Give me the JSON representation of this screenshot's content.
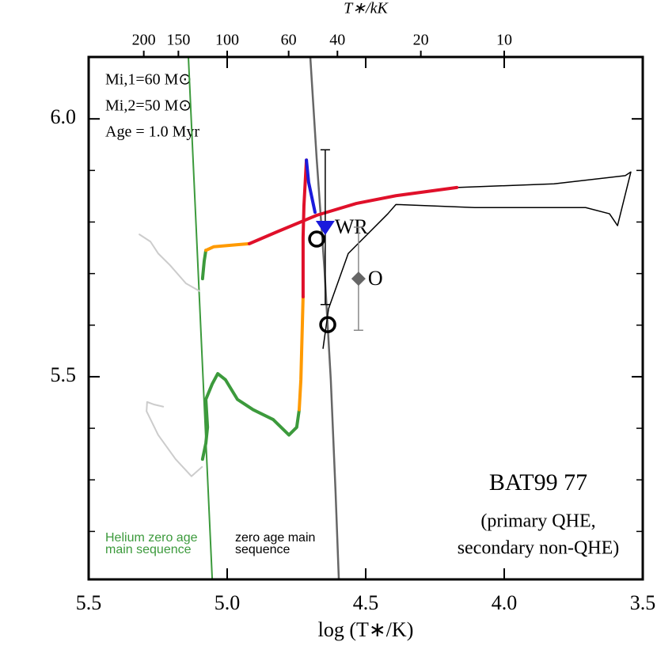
{
  "chart_data": {
    "type": "line",
    "title_lines": [
      "BAT99 77",
      "(primary QHE,",
      "secondary non-QHE)"
    ],
    "annotations": [
      "Mi,1=60 M⊙",
      "Mi,2=50 M⊙",
      "Age = 1.0 Myr"
    ],
    "xlabel": "log (T∗/K)",
    "x2label": "T∗/kK",
    "xlim": [
      5.5,
      3.5
    ],
    "ylim": [
      5.107,
      6.12
    ],
    "xticks": [
      {
        "value": 5.5,
        "label": "5.5"
      },
      {
        "value": 5.0,
        "label": "5.0"
      },
      {
        "value": 4.5,
        "label": "4.5"
      },
      {
        "value": 4.0,
        "label": "4.0"
      },
      {
        "value": 3.5,
        "label": "3.5"
      }
    ],
    "yticks": [
      5.5,
      {
        "value": 6.0,
        "label": "6.0"
      }
    ],
    "yminorticks": [
      5.2,
      5.3,
      5.4,
      5.6,
      5.7,
      5.8,
      5.9
    ],
    "x2ticks": [
      200,
      150,
      100,
      60,
      40,
      20,
      10
    ],
    "series": [
      {
        "name_lines": [
          "Helium zero age",
          "main sequence"
        ],
        "color": "#3c9a3c",
        "width": 2,
        "x": [
          5.14,
          5.054
        ],
        "y": [
          6.12,
          5.107
        ]
      },
      {
        "name_lines": [
          "zero age main",
          "sequence"
        ],
        "color": "#666666",
        "width": 2.5,
        "x": [
          4.7,
          4.677,
          4.649,
          4.626,
          4.609,
          4.597
        ],
        "y": [
          6.12,
          5.923,
          5.709,
          5.494,
          5.279,
          5.107
        ]
      },
      {
        "color": "#cccccc",
        "width": 2,
        "x": [
          5.317,
          5.277,
          5.249,
          5.206,
          5.149,
          5.1
        ],
        "y": [
          5.776,
          5.762,
          5.739,
          5.716,
          5.681,
          5.666
        ]
      },
      {
        "color": "#cccccc",
        "width": 2,
        "x": [
          5.231,
          5.263,
          5.289,
          5.291,
          5.249,
          5.186,
          5.129,
          5.091
        ],
        "y": [
          5.442,
          5.446,
          5.451,
          5.433,
          5.387,
          5.34,
          5.307,
          5.325
        ]
      },
      {
        "color": "#000000",
        "width": 1.5,
        "x": [
          4.171,
          3.82,
          3.563,
          3.543,
          3.591,
          3.62,
          3.706,
          4.106,
          4.391,
          4.42,
          4.563,
          4.634,
          4.654
        ],
        "y": [
          5.867,
          5.874,
          5.89,
          5.897,
          5.793,
          5.816,
          5.828,
          5.828,
          5.834,
          5.816,
          5.739,
          5.632,
          5.555
        ]
      },
      {
        "color": "#3c9a3c",
        "width": 4,
        "x": [
          5.089,
          5.083,
          5.077
        ],
        "y": [
          5.69,
          5.724,
          5.745
        ]
      },
      {
        "color": "#ff9a00",
        "width": 4,
        "x": [
          5.077,
          5.049,
          4.963,
          4.92
        ],
        "y": [
          5.745,
          5.752,
          5.756,
          5.758
        ]
      },
      {
        "color": "#e0102a",
        "width": 4,
        "x": [
          4.92,
          4.82,
          4.677,
          4.534,
          4.391,
          4.171
        ],
        "y": [
          5.758,
          5.781,
          5.813,
          5.836,
          5.851,
          5.867
        ]
      },
      {
        "color": "#3c9a3c",
        "width": 4,
        "x": [
          5.089,
          5.077,
          5.071,
          5.077,
          5.054,
          5.034,
          5.006,
          4.963,
          4.906,
          4.834,
          4.777,
          4.749,
          4.74
        ],
        "y": [
          5.34,
          5.371,
          5.402,
          5.456,
          5.486,
          5.506,
          5.494,
          5.456,
          5.436,
          5.417,
          5.387,
          5.402,
          5.436
        ]
      },
      {
        "color": "#ff9a00",
        "width": 4,
        "x": [
          4.74,
          4.734,
          4.726
        ],
        "y": [
          5.436,
          5.494,
          5.655
        ]
      },
      {
        "color": "#e0102a",
        "width": 4,
        "x": [
          4.726,
          4.726,
          4.723,
          4.714
        ],
        "y": [
          5.655,
          5.77,
          5.831,
          5.92
        ]
      },
      {
        "color": "#1a1adc",
        "width": 4,
        "x": [
          4.714,
          4.706,
          4.683
        ],
        "y": [
          5.92,
          5.877,
          5.819
        ]
      }
    ],
    "stars": [
      {
        "label": "WR",
        "marker": "triangle",
        "color": "#1a1adc",
        "x": 4.646,
        "y": 5.79,
        "yerr": 0.15,
        "errcolor": "#000000"
      },
      {
        "label": "O",
        "marker": "diamond",
        "color": "#666666",
        "x": 4.526,
        "y": 5.69,
        "yerr": 0.1,
        "errcolor": "#888888"
      }
    ],
    "models": {
      "x": [
        4.677,
        4.637
      ],
      "y": [
        5.767,
        5.601
      ]
    }
  }
}
